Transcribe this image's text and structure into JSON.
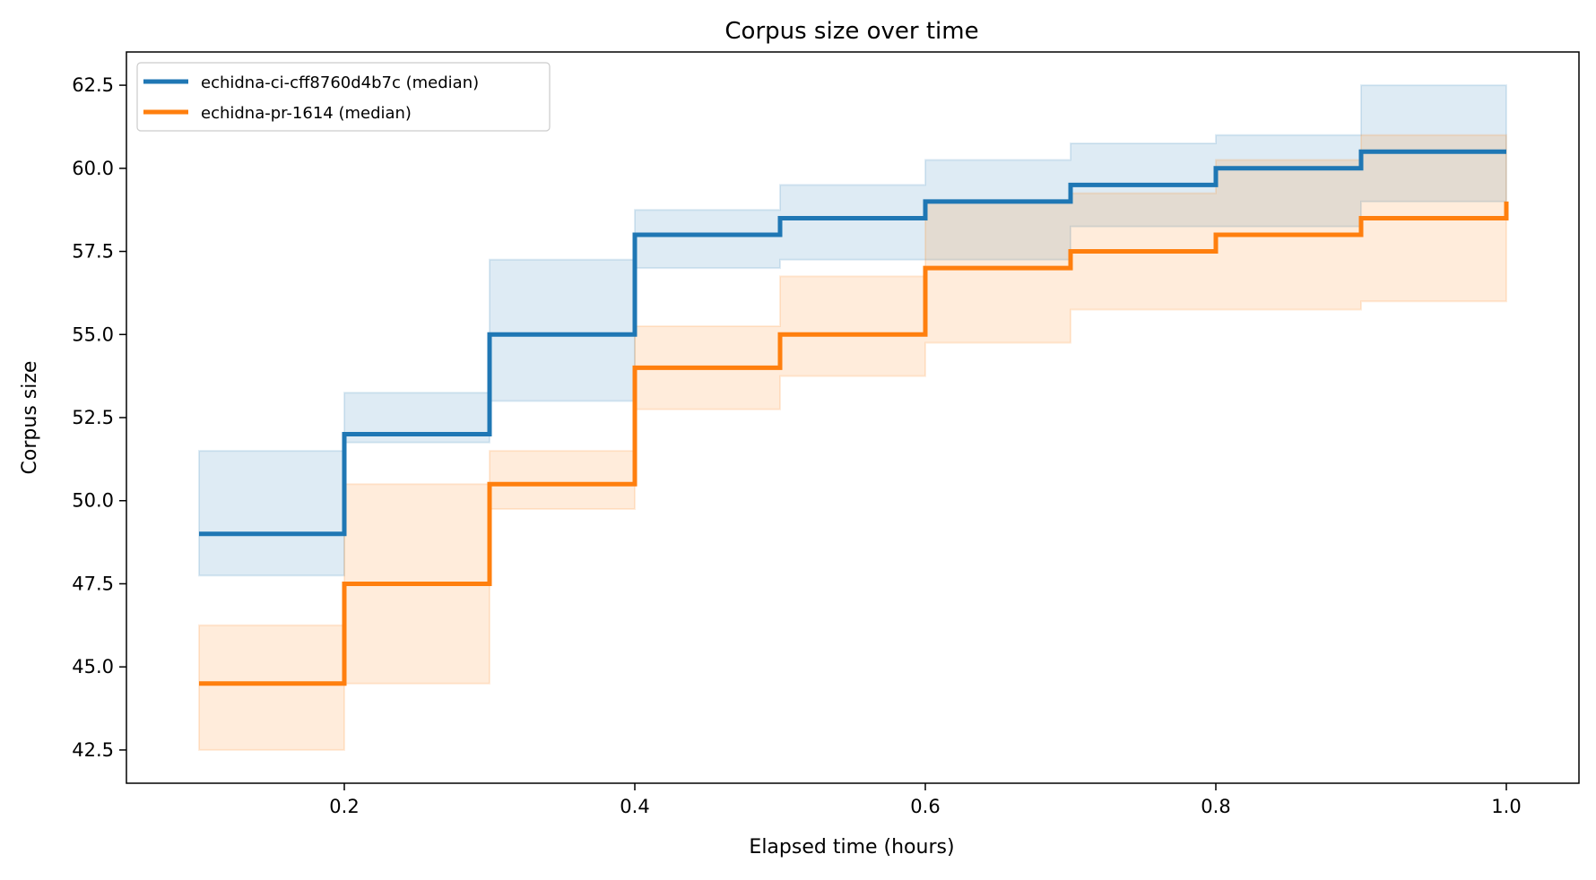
{
  "chart_data": {
    "type": "line",
    "title": "Corpus size over time",
    "xlabel": "Elapsed time (hours)",
    "ylabel": "Corpus size",
    "xlim": [
      0.05,
      1.05
    ],
    "ylim": [
      41.5,
      63.5
    ],
    "xticks": [
      0.2,
      0.4,
      0.6,
      0.8,
      1.0
    ],
    "xtick_labels": [
      "0.2",
      "0.4",
      "0.6",
      "0.8",
      "1.0"
    ],
    "yticks": [
      42.5,
      45.0,
      47.5,
      50.0,
      52.5,
      55.0,
      57.5,
      60.0,
      62.5
    ],
    "ytick_labels": [
      "42.5",
      "45.0",
      "47.5",
      "50.0",
      "52.5",
      "55.0",
      "57.5",
      "60.0",
      "62.5"
    ],
    "grid": false,
    "legend_position": "top-left",
    "step": "post",
    "x": [
      0.1,
      0.2,
      0.3,
      0.4,
      0.5,
      0.6,
      0.7,
      0.8,
      0.9,
      1.0
    ],
    "series": [
      {
        "name": "echidna-ci-cff8760d4b7c (median)",
        "color": "#1f77b4",
        "values": [
          49.0,
          52.0,
          55.0,
          58.0,
          58.5,
          59.0,
          59.5,
          60.0,
          60.5,
          60.5
        ],
        "band_lower": [
          47.75,
          51.75,
          53.0,
          57.0,
          57.25,
          57.25,
          58.25,
          58.25,
          59.0,
          59.0
        ],
        "band_upper": [
          51.5,
          53.25,
          57.25,
          58.75,
          59.5,
          60.25,
          60.75,
          61.0,
          62.5,
          62.5
        ]
      },
      {
        "name": "echidna-pr-1614 (median)",
        "color": "#ff7f0e",
        "values": [
          44.5,
          47.5,
          50.5,
          54.0,
          55.0,
          57.0,
          57.5,
          58.0,
          58.5,
          59.0
        ],
        "band_lower": [
          42.5,
          44.5,
          49.75,
          52.75,
          53.75,
          54.75,
          55.75,
          55.75,
          56.0,
          56.0
        ],
        "band_upper": [
          46.25,
          50.5,
          51.5,
          55.25,
          56.75,
          59.0,
          59.25,
          60.25,
          61.0,
          61.0
        ]
      }
    ]
  }
}
